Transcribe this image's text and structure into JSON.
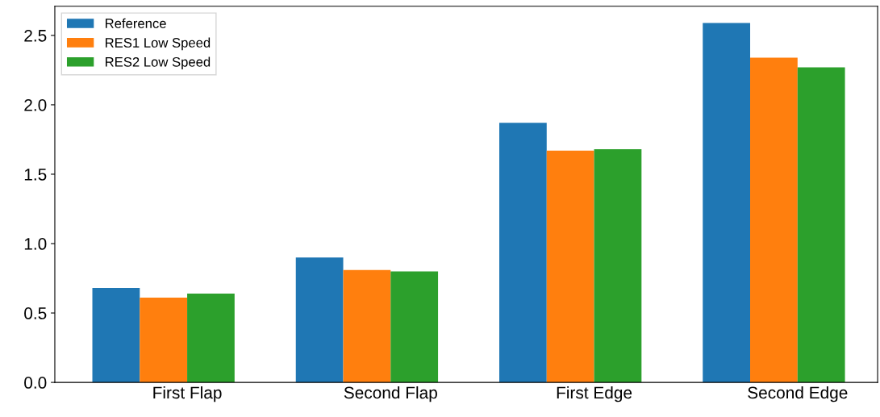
{
  "chart_data": {
    "type": "bar",
    "categories": [
      "First Flap",
      "Second Flap",
      "First Edge",
      "Second Edge"
    ],
    "series": [
      {
        "name": "Reference",
        "color": "#1f77b4",
        "values": [
          0.68,
          0.9,
          1.87,
          2.59
        ]
      },
      {
        "name": "RES1 Low Speed",
        "color": "#ff7f0e",
        "values": [
          0.61,
          0.81,
          1.67,
          2.34
        ]
      },
      {
        "name": "RES2 Low Speed",
        "color": "#2ca02c",
        "values": [
          0.64,
          0.8,
          1.68,
          2.27
        ]
      }
    ],
    "ylim": [
      0,
      2.71
    ],
    "yticks": [
      {
        "value": 0,
        "label": "0.0"
      },
      0.5,
      {
        "value": 1,
        "label": "1.0"
      },
      1.5,
      {
        "value": 2,
        "label": "2.0"
      },
      2.5
    ],
    "grid": false,
    "legend": "top left"
  }
}
